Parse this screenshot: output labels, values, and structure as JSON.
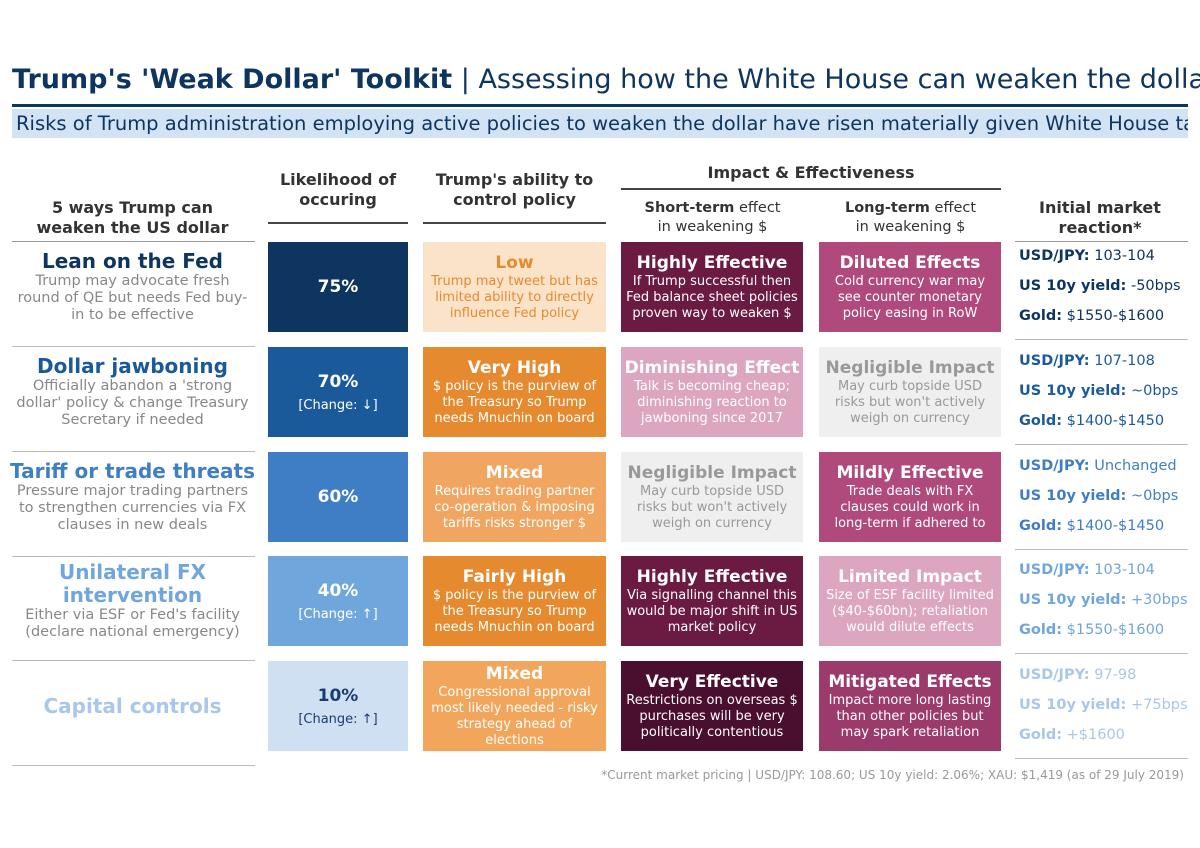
{
  "header": {
    "title": "Trump's 'Weak Dollar' Toolkit",
    "separator": "|",
    "subtitle": "Assessing how the White House can weaken the dollar",
    "banner": "Risks of Trump administration employing active policies to weaken the dollar have risen materially given White House talk"
  },
  "columns": {
    "ways": "5 ways Trump can weaken the US dollar",
    "likelihood": "Likelihood of occuring",
    "ability": "Trump's ability to control policy",
    "impact": "Impact & Effectiveness",
    "short_term": {
      "bold": "Short-term",
      "rest": "effect in weakening $"
    },
    "long_term": {
      "bold": "Long-term",
      "rest": "effect in weakening $"
    },
    "market": "Initial market reaction*"
  },
  "rows": [
    {
      "name": "Lean on the Fed",
      "description": "Trump may advocate fresh round of QE but needs Fed buy-in to be effective",
      "likelihood": "75%",
      "ability": {
        "title": "Low",
        "text": "Trump may tweet but has limited ability to directly influence Fed policy"
      },
      "short_term": {
        "title": "Highly Effective",
        "text": "If Trump successful then Fed balance sheet policies proven way to weaken $"
      },
      "long_term": {
        "title": "Diluted Effects",
        "text": "Cold currency war may see counter monetary policy easing in RoW"
      },
      "market": [
        {
          "label": "USD/JPY:",
          "value": "103-104"
        },
        {
          "label": "US 10y yield:",
          "value": "-50bps"
        },
        {
          "label": "Gold:",
          "value": "$1550-$1600"
        }
      ]
    },
    {
      "name": "Dollar jawboning",
      "description": "Officially abandon a 'strong dollar' policy & change Treasury Secretary if needed",
      "likelihood": "70%",
      "change": "[Change: ↓]",
      "ability": {
        "title": "Very High",
        "text": "$ policy is the purview of the Treasury so Trump needs Mnuchin on board"
      },
      "short_term": {
        "title": "Diminishing Effect",
        "text": "Talk is becoming cheap; diminishing reaction to jawboning since 2017"
      },
      "long_term": {
        "title": "Negligible Impact",
        "text": "May curb topside USD risks but won't actively weigh on currency"
      },
      "market": [
        {
          "label": "USD/JPY:",
          "value": "107-108"
        },
        {
          "label": "US 10y yield:",
          "value": "~0bps"
        },
        {
          "label": "Gold:",
          "value": "$1400-$1450"
        }
      ]
    },
    {
      "name": "Tariff or trade threats",
      "description": "Pressure major trading partners to strengthen currencies via FX clauses in new deals",
      "likelihood": "60%",
      "ability": {
        "title": "Mixed",
        "text": "Requires trading partner co-operation & imposing tariffs risks stronger $"
      },
      "short_term": {
        "title": "Negligible Impact",
        "text": "May curb topside USD risks but won't actively weigh on currency"
      },
      "long_term": {
        "title": "Mildly Effective",
        "text": "Trade deals with FX clauses could work in long-term if adhered to"
      },
      "market": [
        {
          "label": "USD/JPY:",
          "value": "Unchanged"
        },
        {
          "label": "US 10y yield:",
          "value": "~0bps"
        },
        {
          "label": "Gold:",
          "value": "$1400-$1450"
        }
      ]
    },
    {
      "name": "Unilateral FX intervention",
      "description": "Either via ESF or Fed's facility (declare national emergency)",
      "likelihood": "40%",
      "change": "[Change: ↑]",
      "ability": {
        "title": "Fairly High",
        "text": "$ policy is the purview of the Treasury so Trump needs Mnuchin on board"
      },
      "short_term": {
        "title": "Highly Effective",
        "text": "Via signalling channel this would be major shift in US market policy"
      },
      "long_term": {
        "title": "Limited Impact",
        "text": "Size of ESF facility limited ($40-$60bn); retaliation would dilute effects"
      },
      "market": [
        {
          "label": "USD/JPY:",
          "value": "103-104"
        },
        {
          "label": "US 10y yield:",
          "value": "+30bps"
        },
        {
          "label": "Gold:",
          "value": "$1550-$1600"
        }
      ]
    },
    {
      "name": "Capital controls",
      "description": "",
      "likelihood": "10%",
      "change": "[Change: ↑]",
      "ability": {
        "title": "Mixed",
        "text": "Congressional approval most likely needed - risky strategy ahead of elections"
      },
      "short_term": {
        "title": "Very Effective",
        "text": "Restrictions on overseas $ purchases will be very politically contentious"
      },
      "long_term": {
        "title": "Mitigated Effects",
        "text": "Impact more long lasting than other policies but may spark retaliation"
      },
      "market": [
        {
          "label": "USD/JPY:",
          "value": "97-98"
        },
        {
          "label": "US 10y yield:",
          "value": "+75bps"
        },
        {
          "label": "Gold:",
          "value": "+$1600"
        }
      ]
    }
  ],
  "footnote": "*Current market pricing | USD/JPY: 108.60; US 10y yield: 2.06%; XAU: $1,419 (as of 29 July 2019)"
}
